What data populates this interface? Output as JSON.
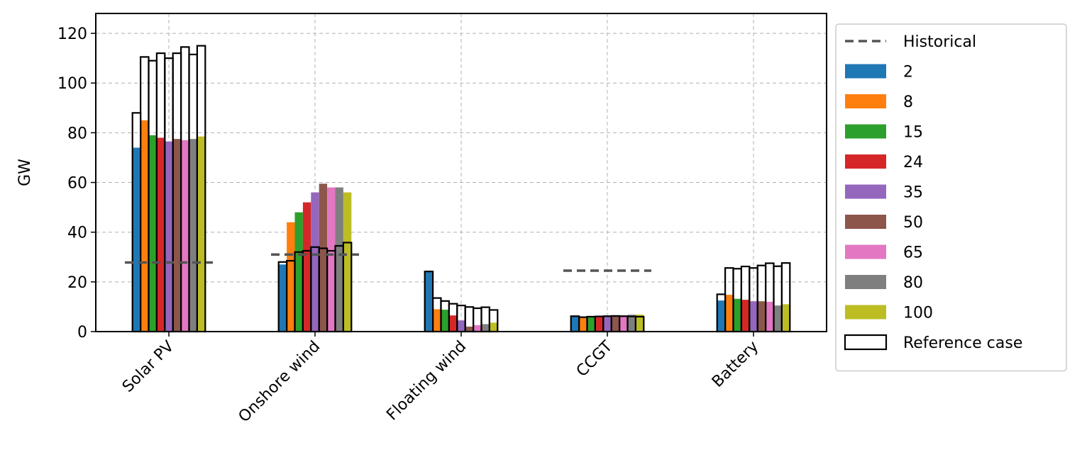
{
  "chart_data": {
    "type": "bar",
    "ylabel": "GW",
    "xlabel": "",
    "title": "",
    "ylim": [
      0,
      128
    ],
    "yticks": [
      0,
      20,
      40,
      60,
      80,
      100,
      120
    ],
    "grid": true,
    "legend_position": "outside-right",
    "categories": [
      "Solar PV",
      "Onshore wind",
      "Floating wind",
      "CCGT",
      "Battery"
    ],
    "series": [
      {
        "name": "2",
        "color": "#1f77b4",
        "values": [
          74,
          27,
          24,
          6,
          12.5
        ]
      },
      {
        "name": "8",
        "color": "#ff7f0e",
        "values": [
          85,
          44,
          9,
          5.5,
          14.8
        ]
      },
      {
        "name": "15",
        "color": "#2ca02c",
        "values": [
          79,
          48,
          8.8,
          5.8,
          13.2
        ]
      },
      {
        "name": "24",
        "color": "#d62728",
        "values": [
          78,
          52,
          6.5,
          5.9,
          12.8
        ]
      },
      {
        "name": "35",
        "color": "#9467bd",
        "values": [
          76.5,
          56,
          4.5,
          6,
          12.2
        ]
      },
      {
        "name": "50",
        "color": "#8c564b",
        "values": [
          77.5,
          59.5,
          2,
          6.2,
          12.2
        ]
      },
      {
        "name": "65",
        "color": "#e377c2",
        "values": [
          77,
          58,
          2.6,
          6.5,
          12
        ]
      },
      {
        "name": "80",
        "color": "#7f7f7f",
        "values": [
          77.5,
          58,
          3,
          6.8,
          10.5
        ]
      },
      {
        "name": "100",
        "color": "#bcbd22",
        "values": [
          78.5,
          56,
          3.6,
          6.8,
          11
        ]
      }
    ],
    "reference_case": {
      "name": "Reference case",
      "values": [
        [
          88,
          28,
          24.2,
          6.2,
          15
        ],
        [
          110.5,
          28.5,
          13.5,
          5.8,
          25.6
        ],
        [
          109,
          32,
          12.3,
          6,
          25.3
        ],
        [
          112,
          32.5,
          11.2,
          6.1,
          26.2
        ],
        [
          110,
          34,
          10.5,
          6.2,
          25.6
        ],
        [
          112,
          33.5,
          9.9,
          6.3,
          26.6
        ],
        [
          114.5,
          32.5,
          9.4,
          6.2,
          27.5
        ],
        [
          111.5,
          34.5,
          9.8,
          6.1,
          26.3
        ],
        [
          115,
          35.8,
          8.7,
          6,
          27.6
        ]
      ]
    },
    "historical": {
      "name": "Historical",
      "color": "#555555",
      "values": [
        27.8,
        31,
        null,
        24.5,
        null
      ]
    }
  }
}
